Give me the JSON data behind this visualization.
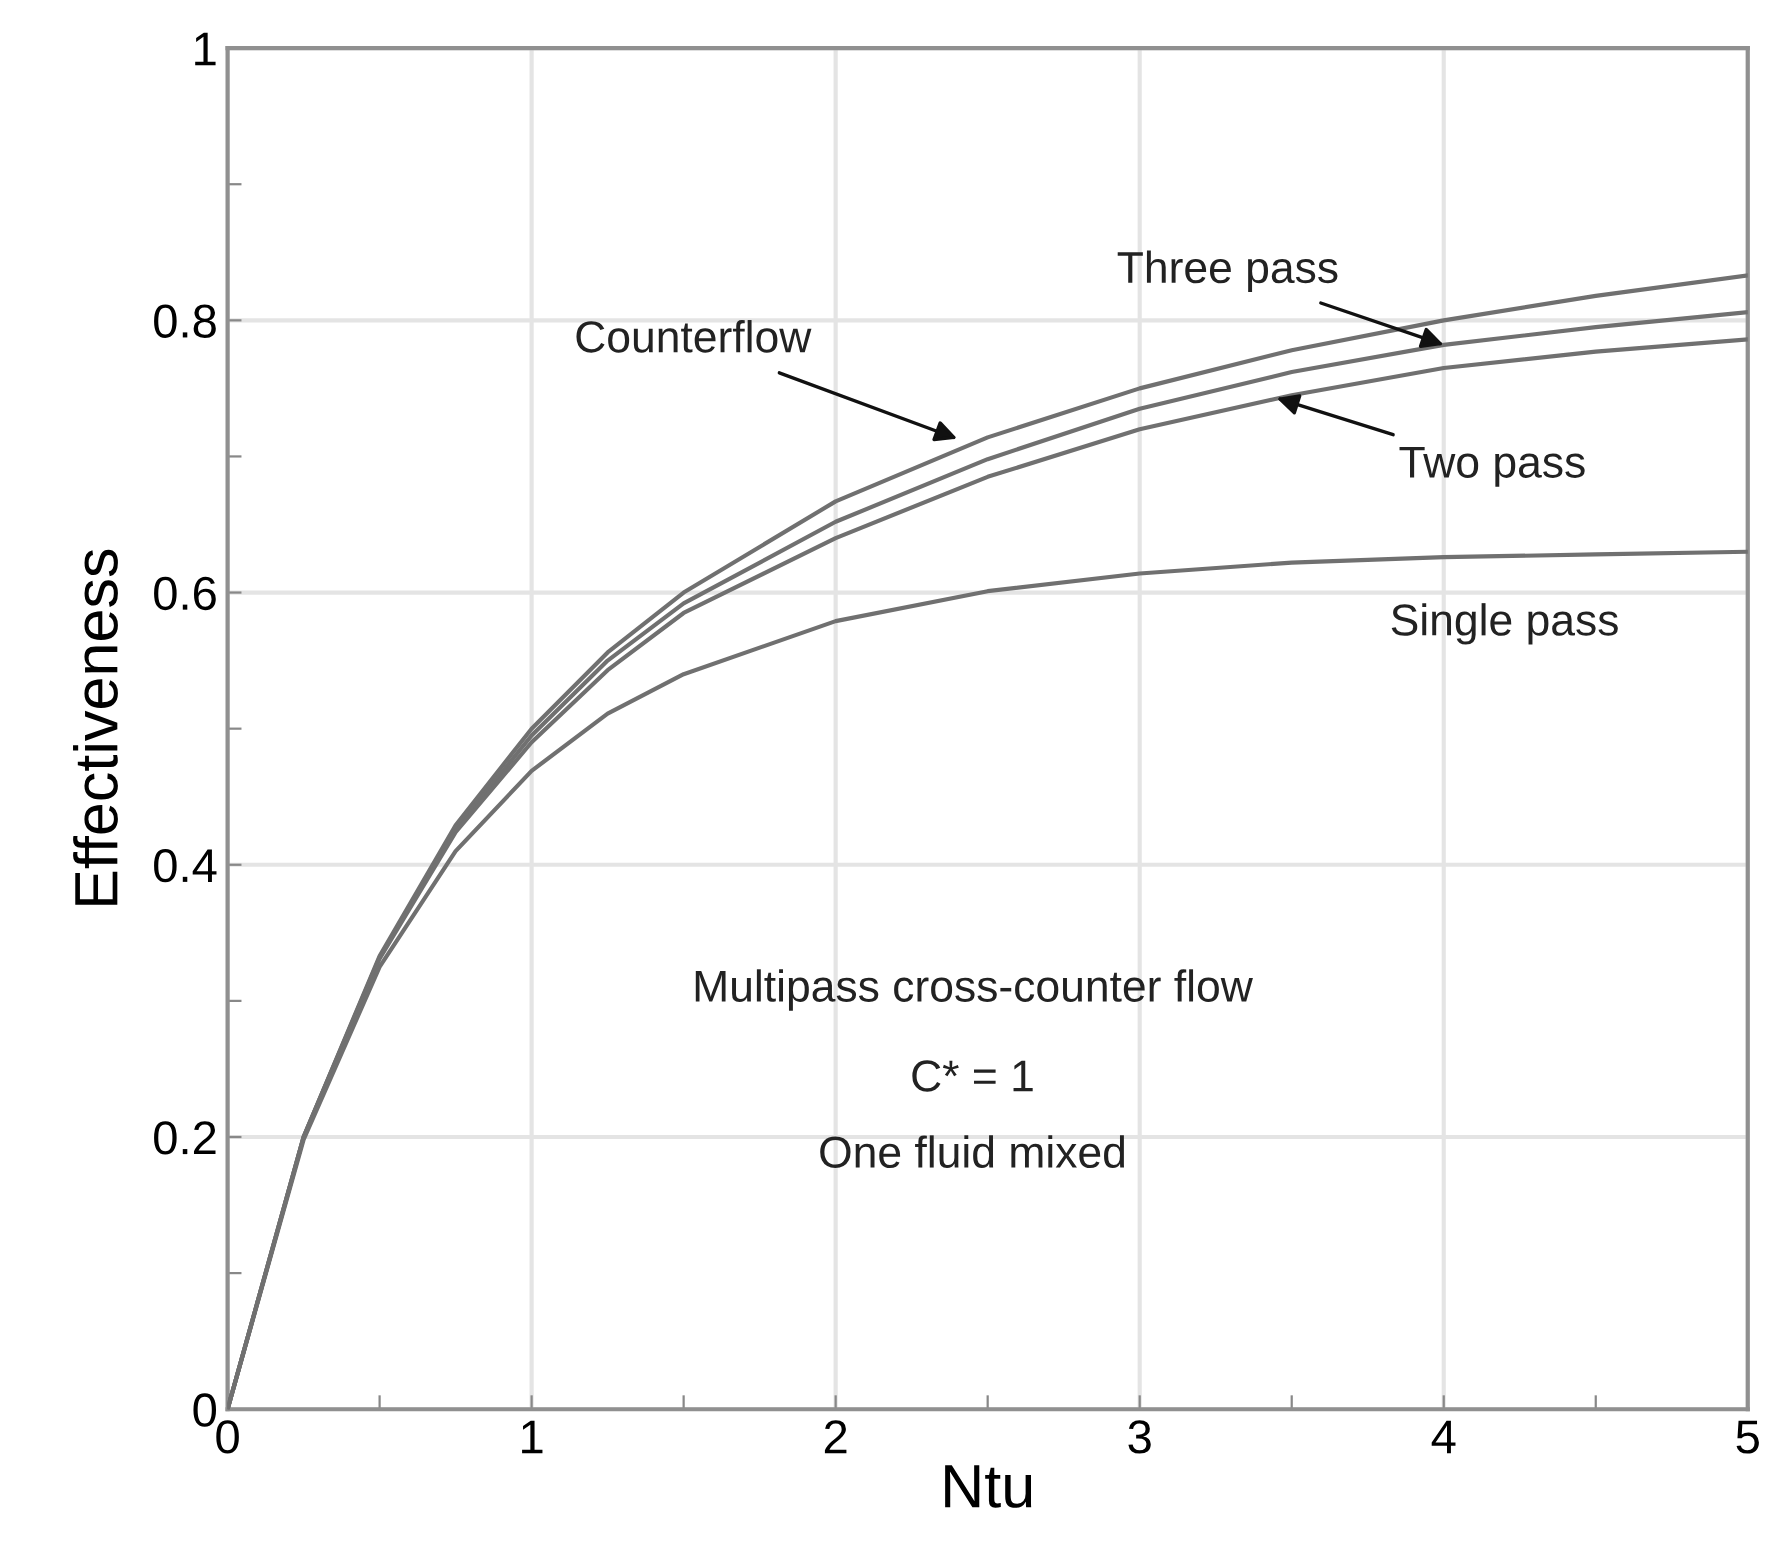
{
  "chart_data": {
    "type": "line",
    "xlabel": "Ntu",
    "ylabel": "Effectiveness",
    "x": [
      0,
      0.25,
      0.5,
      0.75,
      1,
      1.25,
      1.5,
      2,
      2.5,
      3,
      3.5,
      4,
      4.5,
      5
    ],
    "series": [
      {
        "color": "#707070",
        "values": [
          0,
          0.2,
          0.333,
          0.429,
          0.5,
          0.556,
          0.6,
          0.667,
          0.714,
          0.75,
          0.778,
          0.8,
          0.818,
          0.833
        ]
      },
      {
        "color": "#707070",
        "values": [
          0,
          0.2,
          0.332,
          0.426,
          0.495,
          0.55,
          0.592,
          0.652,
          0.698,
          0.735,
          0.762,
          0.782,
          0.795,
          0.806
        ]
      },
      {
        "color": "#707070",
        "values": [
          0,
          0.2,
          0.331,
          0.424,
          0.49,
          0.543,
          0.585,
          0.64,
          0.685,
          0.72,
          0.745,
          0.765,
          0.777,
          0.786
        ]
      },
      {
        "color": "#707070",
        "values": [
          0,
          0.198,
          0.325,
          0.41,
          0.469,
          0.511,
          0.54,
          0.579,
          0.601,
          0.614,
          0.622,
          0.626,
          0.628,
          0.63
        ]
      }
    ],
    "annotations": [
      {
        "text": "Counterflow",
        "x": 2.4,
        "y": 0.713
      },
      {
        "text": "Three pass",
        "x": 4.0,
        "y": 0.782
      },
      {
        "text": "Two pass",
        "x": 3.45,
        "y": 0.743
      },
      {
        "text": "Single pass",
        "x": 4.2,
        "y": 0.627
      },
      "Multipass cross-counter flow",
      "C* = 1",
      "One fluid mixed"
    ],
    "xlim": [
      0,
      5
    ],
    "ylim": [
      0,
      1
    ],
    "xticks": [
      0,
      {
        "value": 0.5,
        "label": null
      },
      1,
      {
        "value": 1.5,
        "label": null
      },
      2,
      {
        "value": 2.5,
        "label": null
      },
      3,
      {
        "value": 3.5,
        "label": null
      },
      4,
      {
        "value": 4.5,
        "label": null
      },
      5
    ],
    "yticks": [
      0,
      {
        "value": 0.1,
        "label": null
      },
      0.2,
      {
        "value": 0.3,
        "label": null
      },
      0.4,
      {
        "value": 0.5,
        "label": null
      },
      0.6,
      {
        "value": 0.7,
        "label": null
      },
      0.8,
      {
        "value": 0.9,
        "label": null
      },
      1
    ],
    "grid": true,
    "line_style": "solid",
    "marker": "none"
  }
}
